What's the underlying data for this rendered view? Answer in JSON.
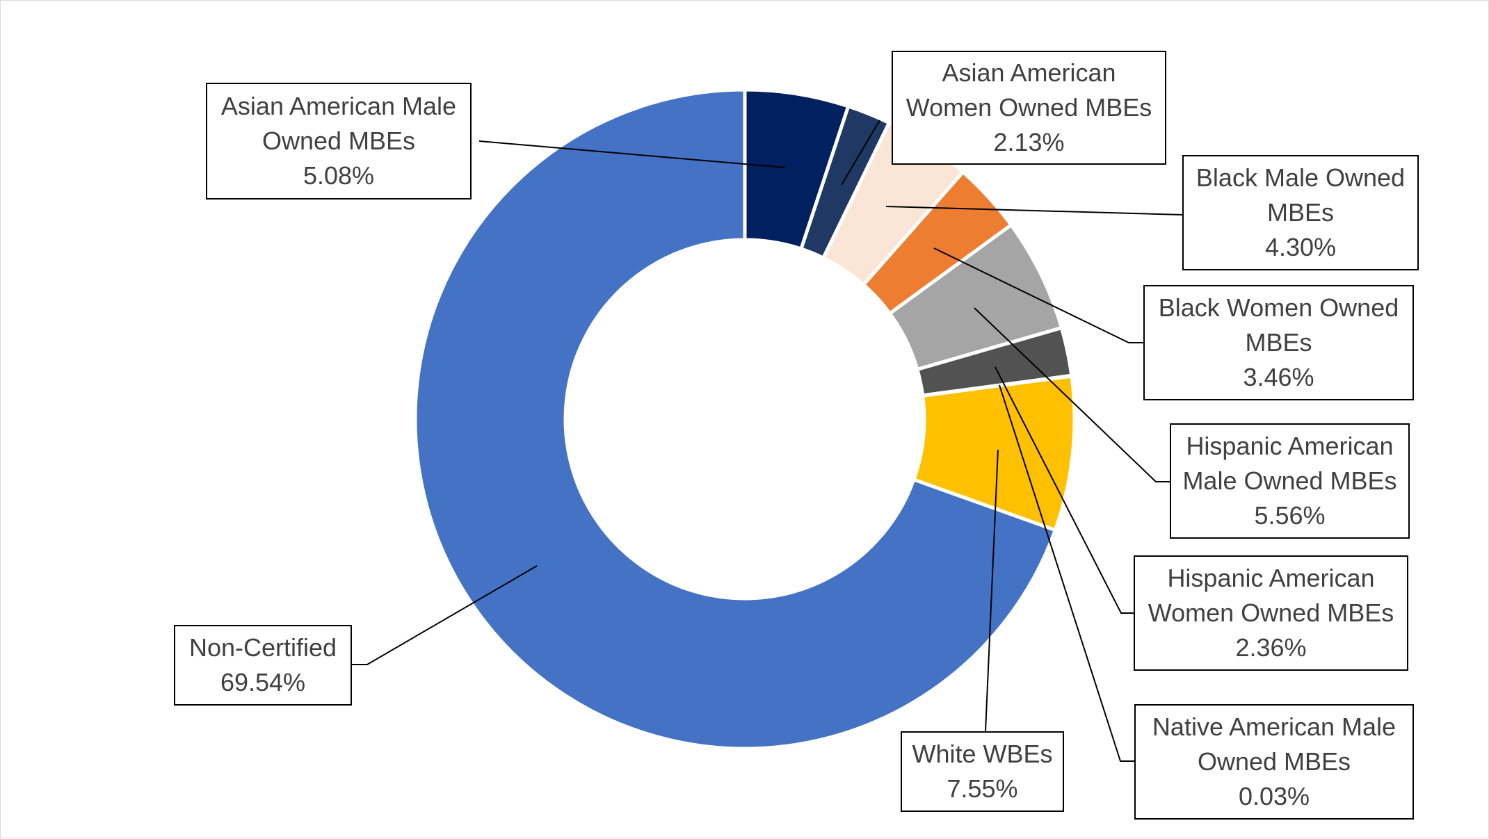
{
  "chart_data": {
    "type": "pie",
    "style": "donut",
    "title": "",
    "slices": [
      {
        "label": "Asian American Male Owned MBEs",
        "label_lines": [
          "Asian American Male",
          "Owned MBEs"
        ],
        "value": 5.08,
        "value_text": "5.08%",
        "color": "#002060"
      },
      {
        "label": "Asian American Women Owned MBEs",
        "label_lines": [
          "Asian American",
          "Women Owned MBEs"
        ],
        "value": 2.13,
        "value_text": "2.13%",
        "color": "#1F3864"
      },
      {
        "label": "Black Male Owned MBEs",
        "label_lines": [
          "Black Male Owned",
          "MBEs"
        ],
        "value": 4.3,
        "value_text": "4.30%",
        "color": "#FBE5D6"
      },
      {
        "label": "Black Women Owned MBEs",
        "label_lines": [
          "Black Women Owned",
          "MBEs"
        ],
        "value": 3.46,
        "value_text": "3.46%",
        "color": "#ED7D31"
      },
      {
        "label": "Hispanic American Male Owned MBEs",
        "label_lines": [
          "Hispanic American",
          "Male Owned MBEs"
        ],
        "value": 5.56,
        "value_text": "5.56%",
        "color": "#A5A5A5"
      },
      {
        "label": "Hispanic American Women Owned MBEs",
        "label_lines": [
          "Hispanic American",
          "Women Owned MBEs"
        ],
        "value": 2.36,
        "value_text": "2.36%",
        "color": "#525252"
      },
      {
        "label": "Native American Male Owned MBEs",
        "label_lines": [
          "Native American Male",
          "Owned MBEs"
        ],
        "value": 0.03,
        "value_text": "0.03%",
        "color": "#203864"
      },
      {
        "label": "White WBEs",
        "label_lines": [
          "White WBEs"
        ],
        "value": 7.55,
        "value_text": "7.55%",
        "color": "#FFC000"
      },
      {
        "label": "Non-Certified",
        "label_lines": [
          "Non-Certified"
        ],
        "value": 69.54,
        "value_text": "69.54%",
        "color": "#4472C4"
      }
    ],
    "legend": "none",
    "data_labels": "callouts with leader lines"
  }
}
